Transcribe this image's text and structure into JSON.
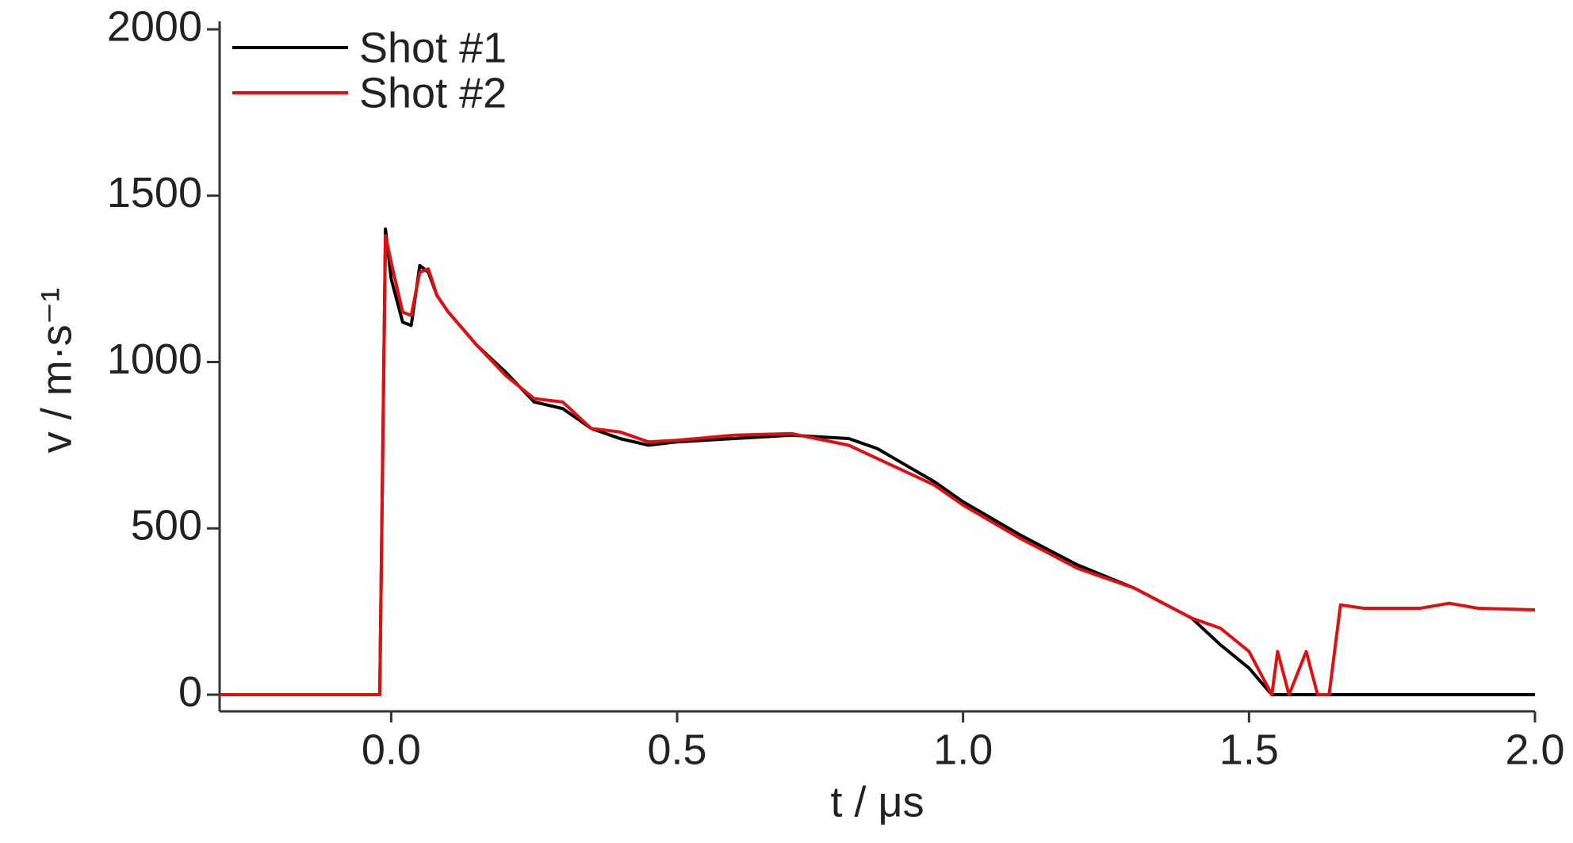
{
  "chart_data": {
    "type": "line",
    "xlabel": "t / μs",
    "ylabel": "v / m·s⁻¹",
    "x": [
      -0.3,
      -0.02,
      -0.01,
      0.0,
      0.02,
      0.035,
      0.05,
      0.065,
      0.08,
      0.1,
      0.15,
      0.2,
      0.25,
      0.3,
      0.35,
      0.4,
      0.45,
      0.5,
      0.6,
      0.7,
      0.8,
      0.85,
      0.9,
      0.95,
      1.0,
      1.1,
      1.2,
      1.3,
      1.4,
      1.45,
      1.5,
      1.54,
      1.55,
      1.57,
      1.6,
      1.62,
      1.64,
      1.66,
      1.7,
      1.8,
      1.85,
      1.9,
      2.0
    ],
    "series": [
      {
        "name": "Shot #1",
        "color": "#000000",
        "values": [
          0,
          0,
          1400,
          1250,
          1120,
          1110,
          1290,
          1270,
          1200,
          1150,
          1050,
          970,
          880,
          860,
          800,
          770,
          750,
          760,
          770,
          780,
          770,
          740,
          690,
          640,
          580,
          480,
          390,
          320,
          230,
          150,
          80,
          0,
          0,
          0,
          0,
          0,
          0,
          0,
          0,
          0,
          0,
          0,
          0
        ]
      },
      {
        "name": "Shot #2",
        "color": "#e01010",
        "values": [
          0,
          0,
          1380,
          1300,
          1150,
          1140,
          1270,
          1280,
          1200,
          1150,
          1050,
          960,
          890,
          880,
          800,
          790,
          760,
          765,
          780,
          785,
          750,
          710,
          670,
          630,
          570,
          470,
          380,
          320,
          230,
          200,
          130,
          0,
          130,
          0,
          130,
          0,
          0,
          270,
          260,
          260,
          275,
          260,
          255
        ]
      }
    ],
    "xlim": [
      -0.3,
      2.0
    ],
    "ylim": [
      -50,
      2000
    ],
    "xticks": [
      {
        "value": 0,
        "label": "0.0"
      },
      0.5,
      {
        "value": 1,
        "label": "1.0"
      },
      1.5,
      {
        "value": 2,
        "label": "2.0"
      }
    ],
    "yticks": [
      0,
      500,
      1000,
      1500,
      2000
    ],
    "legend": "upper-left"
  }
}
